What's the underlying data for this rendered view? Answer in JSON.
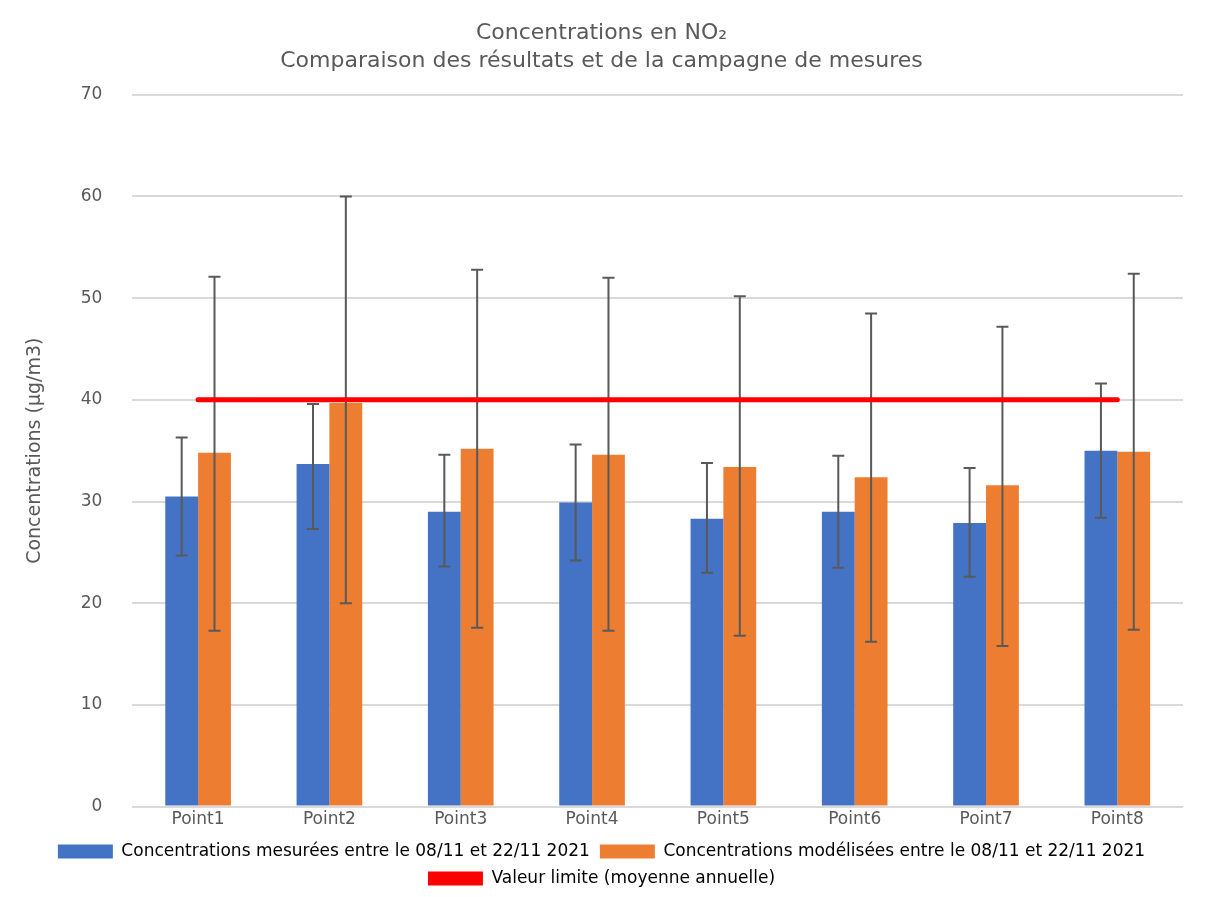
{
  "chart_data": {
    "type": "bar",
    "title": "Concentrations en NO₂",
    "subtitle": "Comparaison des résultats et de la campagne de mesures",
    "ylabel": "Concentrations (µg/m3)",
    "categories": [
      "Point1",
      "Point2",
      "Point3",
      "Point4",
      "Point5",
      "Point6",
      "Point7",
      "Point8"
    ],
    "series": [
      {
        "name": "Concentrations mesurées entre le 08/11 et 22/11 2021",
        "color": "#4472c4",
        "values": [
          30.5,
          33.7,
          29.0,
          29.9,
          28.3,
          29.0,
          27.9,
          35.0
        ],
        "errors": [
          [
            24.7,
            36.3
          ],
          [
            27.3,
            39.6
          ],
          [
            23.6,
            34.6
          ],
          [
            24.2,
            35.6
          ],
          [
            23.0,
            33.8
          ],
          [
            23.5,
            34.5
          ],
          [
            22.6,
            33.3
          ],
          [
            28.4,
            41.6
          ]
        ]
      },
      {
        "name": "Concentrations modélisées entre le 08/11 et 22/11 2021",
        "color": "#ed7d31",
        "values": [
          34.8,
          39.7,
          35.2,
          34.6,
          33.4,
          32.4,
          31.6,
          34.9
        ],
        "errors": [
          [
            17.3,
            52.1
          ],
          [
            20.0,
            60.0
          ],
          [
            17.6,
            52.8
          ],
          [
            17.3,
            52.0
          ],
          [
            16.8,
            50.2
          ],
          [
            16.2,
            48.5
          ],
          [
            15.8,
            47.2
          ],
          [
            17.4,
            52.4
          ]
        ]
      }
    ],
    "ref_lines": [
      {
        "axis": "y",
        "value": 40,
        "label": "Valeur limite (moyenne annuelle)",
        "color": "#ff0000"
      }
    ],
    "ylim": [
      0,
      70
    ],
    "yticks": [
      0,
      10,
      20,
      30,
      40,
      50,
      60,
      70
    ],
    "grid": "y",
    "legend": "bottom"
  }
}
